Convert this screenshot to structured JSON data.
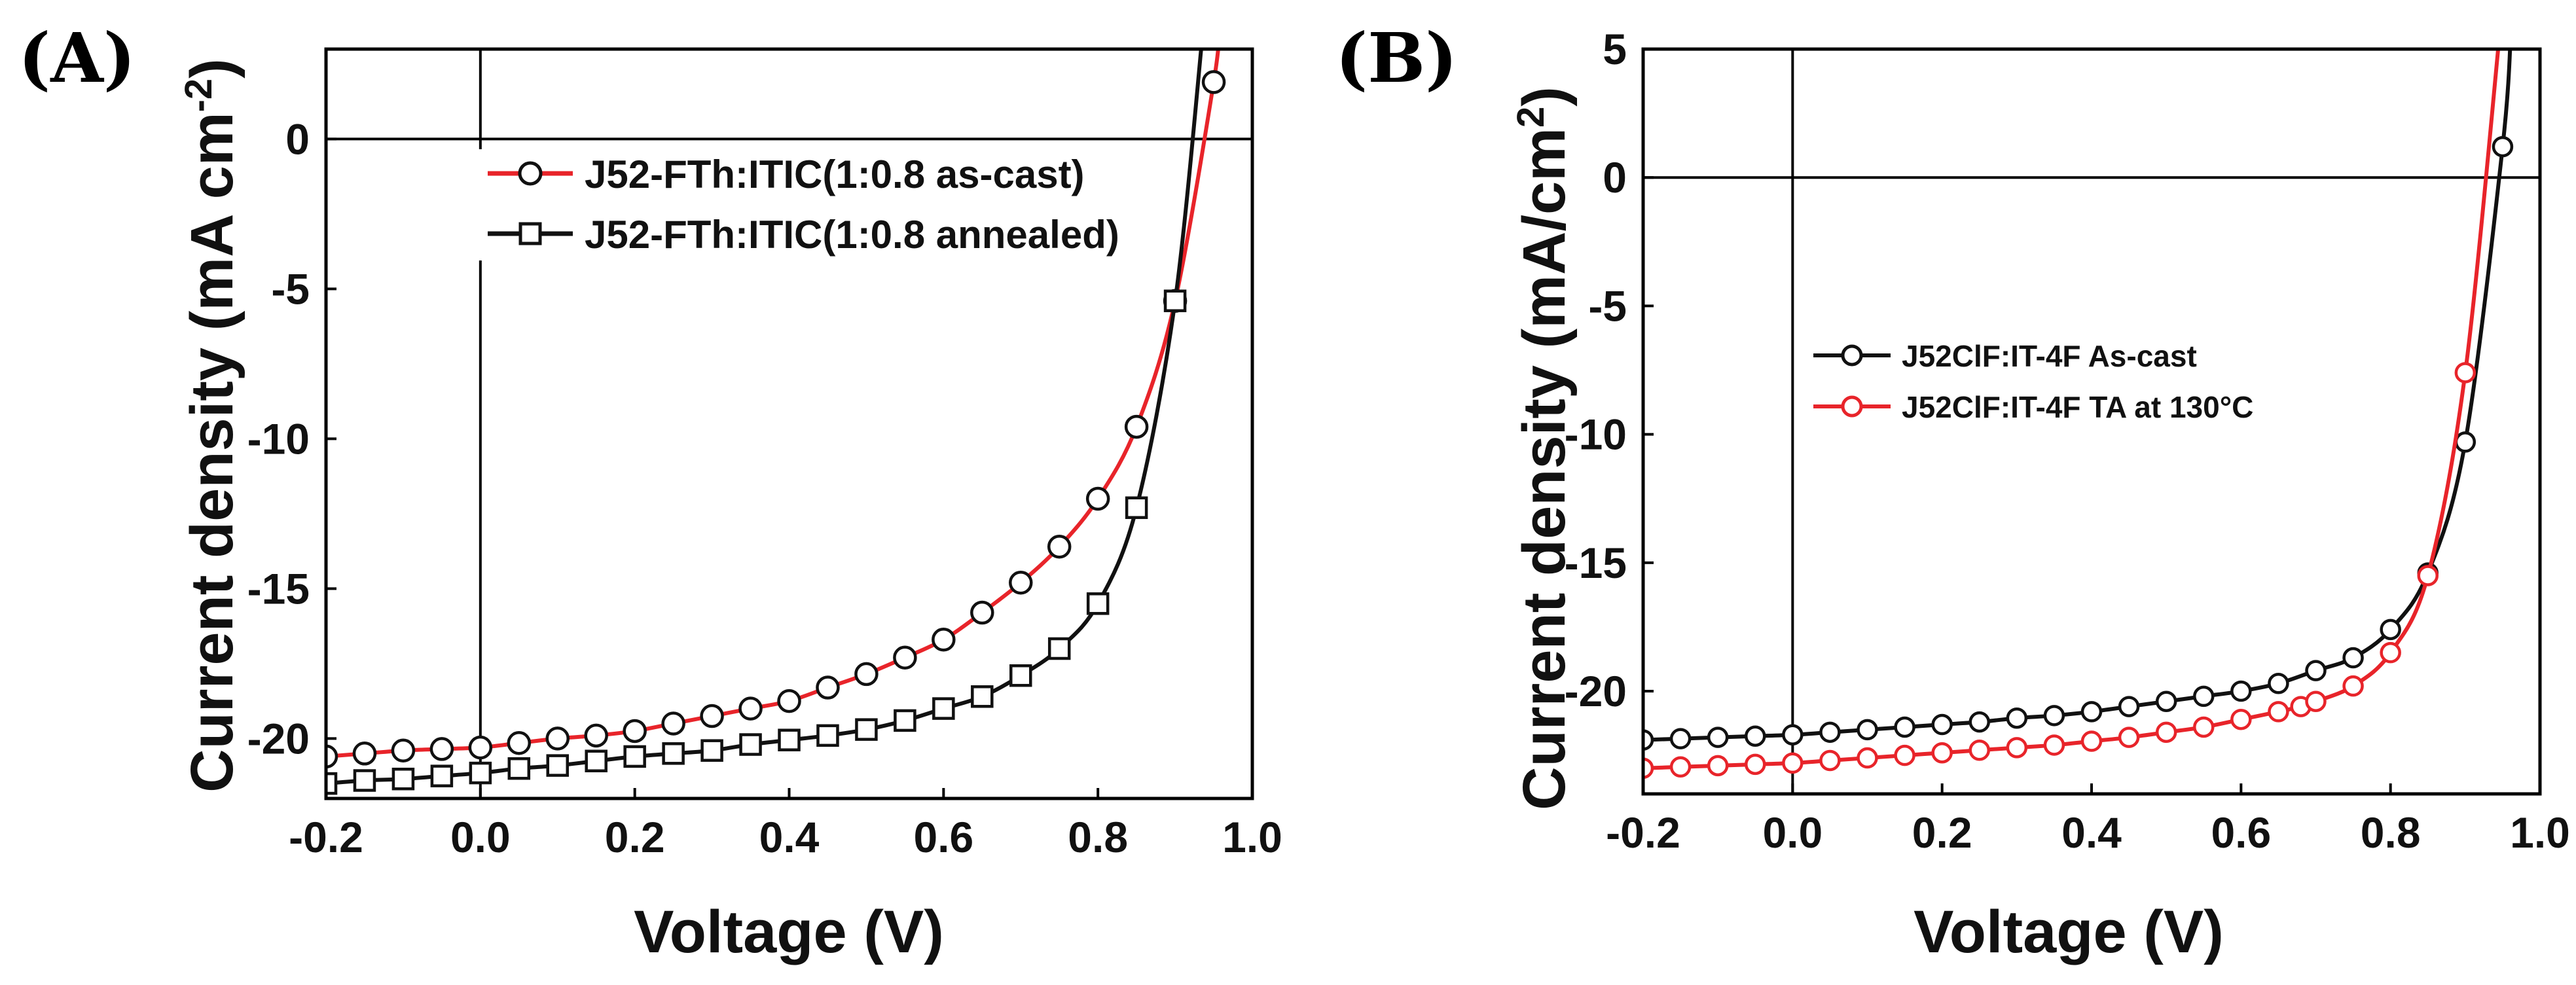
{
  "chart_data": [
    {
      "panel_label": "(A)",
      "type": "line",
      "xlabel": "Voltage (V)",
      "ylabel_main": "Current density (mA cm",
      "ylabel_sup": "-2",
      "ylabel_end": ")",
      "xlim": [
        -0.2,
        1.0
      ],
      "ylim": [
        -22,
        3
      ],
      "xticks": [
        -0.2,
        0.0,
        0.2,
        0.4,
        0.6,
        0.8,
        1.0
      ],
      "xtick_labels": [
        "-0.2",
        "0.0",
        "0.2",
        "0.4",
        "0.6",
        "0.8",
        "1.0"
      ],
      "yticks": [
        0,
        -5,
        -10,
        -15,
        -20
      ],
      "ytick_labels": [
        "0",
        "-5",
        "-10",
        "-15",
        "-20"
      ],
      "zero_lines": true,
      "legend_position": "top-right",
      "series": [
        {
          "name": "J52-FTh:ITIC(1:0.8 as-cast)",
          "color": "#e8242a",
          "marker": "circle",
          "x": [
            -0.2,
            -0.15,
            -0.1,
            -0.05,
            0.0,
            0.05,
            0.1,
            0.15,
            0.2,
            0.25,
            0.3,
            0.35,
            0.4,
            0.45,
            0.5,
            0.55,
            0.6,
            0.65,
            0.7,
            0.75,
            0.8,
            0.85,
            0.9,
            0.95
          ],
          "y": [
            -20.6,
            -20.5,
            -20.4,
            -20.35,
            -20.3,
            -20.15,
            -20.0,
            -19.9,
            -19.75,
            -19.5,
            -19.25,
            -19.0,
            -18.75,
            -18.3,
            -17.85,
            -17.3,
            -16.7,
            -15.8,
            -14.8,
            -13.6,
            -12.0,
            -9.6,
            -5.4,
            1.9
          ]
        },
        {
          "name": "J52-FTh:ITIC(1:0.8 annealed)",
          "color": "#111111",
          "marker": "square",
          "x": [
            -0.2,
            -0.15,
            -0.1,
            -0.05,
            0.0,
            0.05,
            0.1,
            0.15,
            0.2,
            0.25,
            0.3,
            0.35,
            0.4,
            0.45,
            0.5,
            0.55,
            0.6,
            0.65,
            0.7,
            0.75,
            0.8,
            0.85,
            0.9
          ],
          "y": [
            -21.5,
            -21.4,
            -21.35,
            -21.25,
            -21.15,
            -21.0,
            -20.9,
            -20.75,
            -20.6,
            -20.5,
            -20.4,
            -20.2,
            -20.05,
            -19.9,
            -19.7,
            -19.4,
            -19.0,
            -18.6,
            -17.9,
            -17.0,
            -15.5,
            -12.3,
            -5.4
          ]
        }
      ]
    },
    {
      "panel_label": "(B)",
      "type": "line",
      "xlabel": "Voltage (V)",
      "ylabel_main": "Current density (mA/cm",
      "ylabel_sup": "2",
      "ylabel_end": ")",
      "xlim": [
        -0.2,
        1.0
      ],
      "ylim": [
        -24,
        5
      ],
      "xticks": [
        -0.2,
        0.0,
        0.2,
        0.4,
        0.6,
        0.8,
        1.0
      ],
      "xtick_labels": [
        "-0.2",
        "0.0",
        "0.2",
        "0.4",
        "0.6",
        "0.8",
        "1.0"
      ],
      "yticks": [
        5,
        0,
        -5,
        -10,
        -15,
        -20
      ],
      "ytick_labels": [
        "5",
        "0",
        "-5",
        "-10",
        "-15",
        "-20"
      ],
      "zero_lines": true,
      "legend_position": "center-left",
      "series": [
        {
          "name": "J52ClF:IT-4F As-cast",
          "color": "#111111",
          "marker": "circle",
          "x": [
            -0.2,
            -0.15,
            -0.1,
            -0.05,
            0.0,
            0.05,
            0.1,
            0.15,
            0.2,
            0.25,
            0.3,
            0.35,
            0.4,
            0.45,
            0.5,
            0.55,
            0.6,
            0.65,
            0.7,
            0.75,
            0.8,
            0.85,
            0.9,
            0.95
          ],
          "y": [
            -21.9,
            -21.85,
            -21.8,
            -21.75,
            -21.7,
            -21.6,
            -21.5,
            -21.4,
            -21.3,
            -21.2,
            -21.05,
            -20.95,
            -20.8,
            -20.6,
            -20.4,
            -20.2,
            -20.0,
            -19.7,
            -19.2,
            -18.7,
            -17.6,
            -15.4,
            -10.3,
            1.2
          ]
        },
        {
          "name": "J52ClF:IT-4F TA at 130°C",
          "color": "#e8242a",
          "marker": "circle",
          "x": [
            -0.2,
            -0.15,
            -0.1,
            -0.05,
            0.0,
            0.05,
            0.1,
            0.15,
            0.2,
            0.25,
            0.3,
            0.35,
            0.4,
            0.45,
            0.5,
            0.55,
            0.6,
            0.65,
            0.68,
            0.7,
            0.75,
            0.8,
            0.85,
            0.9
          ],
          "y": [
            -23.0,
            -22.95,
            -22.9,
            -22.85,
            -22.8,
            -22.7,
            -22.6,
            -22.5,
            -22.4,
            -22.3,
            -22.2,
            -22.1,
            -21.95,
            -21.8,
            -21.6,
            -21.4,
            -21.1,
            -20.8,
            -20.6,
            -20.4,
            -19.8,
            -18.5,
            -15.5,
            -7.6
          ]
        }
      ]
    }
  ]
}
